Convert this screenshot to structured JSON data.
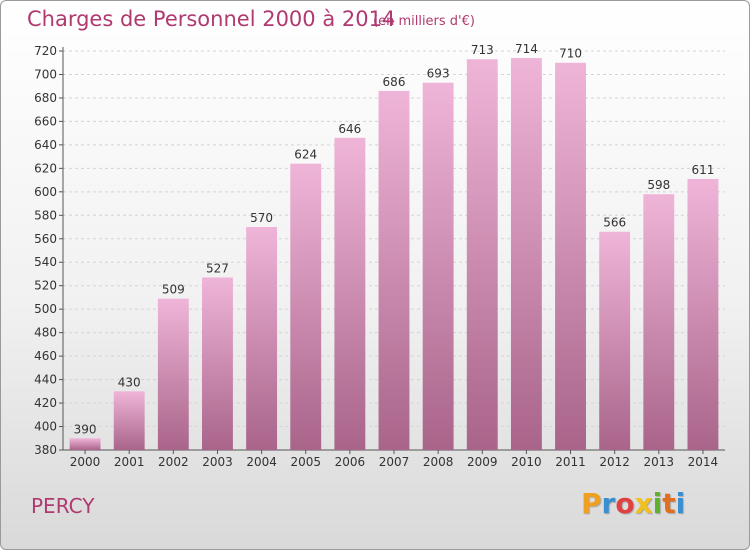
{
  "header": {
    "title": "Charges de Personnel 2000 à 2014",
    "subtitle": "(en milliers d'€)"
  },
  "footer": {
    "commune": "PERCY",
    "logo_text": "Proxiti",
    "logo_colors": [
      "#f0a020",
      "#3a8fd0",
      "#e04040",
      "#f0c020",
      "#60b030",
      "#e07020",
      "#3a8fd0"
    ]
  },
  "colors": {
    "bar_light": "#efb5d8",
    "bar_dark": "#a9648a",
    "title": "#b03a70"
  },
  "chart_data": {
    "type": "bar",
    "categories": [
      "2000",
      "2001",
      "2002",
      "2003",
      "2004",
      "2005",
      "2006",
      "2007",
      "2008",
      "2009",
      "2010",
      "2011",
      "2012",
      "2013",
      "2014"
    ],
    "values": [
      390,
      430,
      509,
      527,
      570,
      624,
      646,
      686,
      693,
      713,
      714,
      710,
      566,
      598,
      611
    ],
    "title": "Charges de Personnel 2000 à 2014",
    "ylim": [
      380,
      720
    ],
    "yticks": [
      380,
      400,
      420,
      440,
      460,
      480,
      500,
      520,
      540,
      560,
      580,
      600,
      620,
      640,
      660,
      680,
      700,
      720
    ],
    "grid": true
  }
}
